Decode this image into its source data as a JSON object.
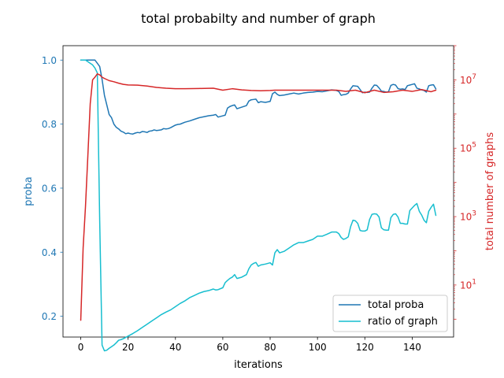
{
  "chart_data": {
    "type": "line",
    "title": "total probabilty and number of graph",
    "xlabel": "iterations",
    "ylabel_left": "proba",
    "ylabel_right": "total number of graphs",
    "xlim": [
      -7.5,
      157.5
    ],
    "ylim_left": [
      0.135,
      1.045
    ],
    "ylim_right": [
      0.3,
      100000000
    ],
    "right_scale": "log",
    "x_ticks": [
      0,
      20,
      40,
      60,
      80,
      100,
      120,
      140
    ],
    "left_ticks": [
      0.2,
      0.4,
      0.6,
      0.8,
      1.0
    ],
    "left_tick_labels": [
      "0.2",
      "0.4",
      "0.6",
      "0.8",
      "1.0"
    ],
    "right_ticks": [
      10,
      1000,
      100000,
      10000000
    ],
    "right_tick_labels": [
      "10",
      "3",
      "10",
      "5",
      "10",
      "7"
    ],
    "right_tick_base": "10",
    "right_tick_exponents": [
      "1",
      "3",
      "5",
      "7"
    ],
    "grid": false,
    "legend_position": "lower-right",
    "colors": {
      "total_proba": "#1f77b4",
      "ratio": "#17becf",
      "total_graphs": "#d62728",
      "left_axis": "#1f77b4",
      "right_axis": "#d62728"
    },
    "series": [
      {
        "name": "total proba",
        "axis": "left",
        "x": [
          0,
          2,
          4,
          6,
          7,
          8,
          9,
          10,
          11,
          12,
          13,
          14,
          15,
          16,
          17,
          18,
          19,
          20,
          21,
          22,
          23,
          24,
          25,
          26,
          27,
          28,
          29,
          30,
          31,
          32,
          33,
          34,
          35,
          36,
          37,
          38,
          39,
          40,
          41,
          42,
          44,
          46,
          48,
          50,
          52,
          54,
          56,
          57,
          58,
          60,
          61,
          62,
          63,
          64,
          65,
          66,
          68,
          70,
          71,
          72,
          73,
          74,
          75,
          76,
          78,
          80,
          81,
          82,
          83,
          84,
          86,
          88,
          90,
          92,
          94,
          96,
          98,
          100,
          102,
          104,
          106,
          108,
          109,
          110,
          111,
          112,
          113,
          114,
          115,
          116,
          117,
          118,
          119,
          120,
          121,
          122,
          123,
          124,
          125,
          126,
          127,
          128,
          129,
          130,
          131,
          132,
          133,
          134,
          135,
          136,
          137,
          138,
          139,
          140,
          141,
          142,
          143,
          144,
          145,
          146,
          147,
          148,
          149,
          150
        ],
        "values": [
          1.0,
          1.0,
          1.0,
          1.0,
          0.99,
          0.98,
          0.94,
          0.89,
          0.86,
          0.83,
          0.82,
          0.8,
          0.79,
          0.785,
          0.778,
          0.775,
          0.77,
          0.772,
          0.77,
          0.769,
          0.772,
          0.774,
          0.773,
          0.777,
          0.776,
          0.774,
          0.778,
          0.779,
          0.782,
          0.78,
          0.781,
          0.782,
          0.786,
          0.785,
          0.786,
          0.789,
          0.793,
          0.797,
          0.799,
          0.8,
          0.806,
          0.81,
          0.815,
          0.82,
          0.823,
          0.826,
          0.828,
          0.83,
          0.822,
          0.826,
          0.828,
          0.85,
          0.855,
          0.858,
          0.86,
          0.848,
          0.853,
          0.858,
          0.872,
          0.876,
          0.877,
          0.878,
          0.867,
          0.87,
          0.868,
          0.871,
          0.895,
          0.9,
          0.893,
          0.889,
          0.891,
          0.894,
          0.897,
          0.894,
          0.897,
          0.899,
          0.9,
          0.902,
          0.901,
          0.904,
          0.907,
          0.905,
          0.902,
          0.89,
          0.892,
          0.893,
          0.897,
          0.91,
          0.92,
          0.919,
          0.918,
          0.908,
          0.898,
          0.9,
          0.899,
          0.9,
          0.912,
          0.922,
          0.921,
          0.913,
          0.903,
          0.902,
          0.9,
          0.901,
          0.921,
          0.924,
          0.922,
          0.911,
          0.909,
          0.91,
          0.908,
          0.92,
          0.922,
          0.924,
          0.926,
          0.912,
          0.91,
          0.907,
          0.905,
          0.9,
          0.92,
          0.922,
          0.923,
          0.91
        ]
      },
      {
        "name": "ratio of graph",
        "axis": "left",
        "x": [
          0,
          2,
          4,
          5,
          6,
          7,
          8,
          9,
          10,
          11,
          12,
          13,
          14,
          15,
          16,
          17,
          18,
          19,
          20,
          22,
          24,
          26,
          28,
          30,
          32,
          34,
          36,
          38,
          40,
          42,
          44,
          46,
          48,
          50,
          52,
          54,
          56,
          57,
          58,
          60,
          61,
          62,
          63,
          64,
          65,
          66,
          68,
          70,
          71,
          72,
          73,
          74,
          75,
          76,
          78,
          80,
          81,
          82,
          83,
          84,
          86,
          88,
          90,
          92,
          94,
          96,
          98,
          100,
          102,
          104,
          106,
          108,
          109,
          110,
          111,
          112,
          113,
          114,
          115,
          116,
          117,
          118,
          119,
          120,
          121,
          122,
          123,
          124,
          125,
          126,
          127,
          128,
          129,
          130,
          131,
          132,
          133,
          134,
          135,
          136,
          137,
          138,
          139,
          140,
          141,
          142,
          143,
          144,
          145,
          146,
          147,
          148,
          149,
          150
        ],
        "values": [
          1.0,
          1.0,
          0.99,
          0.985,
          0.975,
          0.96,
          0.5,
          0.11,
          0.092,
          0.094,
          0.1,
          0.105,
          0.11,
          0.117,
          0.125,
          0.127,
          0.13,
          0.134,
          0.138,
          0.146,
          0.155,
          0.165,
          0.175,
          0.185,
          0.195,
          0.205,
          0.213,
          0.22,
          0.23,
          0.24,
          0.248,
          0.258,
          0.265,
          0.272,
          0.277,
          0.28,
          0.285,
          0.282,
          0.283,
          0.289,
          0.305,
          0.312,
          0.318,
          0.322,
          0.33,
          0.318,
          0.322,
          0.33,
          0.348,
          0.36,
          0.365,
          0.368,
          0.356,
          0.36,
          0.363,
          0.367,
          0.36,
          0.398,
          0.408,
          0.398,
          0.403,
          0.413,
          0.423,
          0.43,
          0.43,
          0.435,
          0.44,
          0.45,
          0.45,
          0.456,
          0.463,
          0.463,
          0.458,
          0.446,
          0.44,
          0.443,
          0.448,
          0.48,
          0.5,
          0.498,
          0.49,
          0.468,
          0.466,
          0.466,
          0.47,
          0.502,
          0.518,
          0.52,
          0.519,
          0.51,
          0.476,
          0.47,
          0.469,
          0.469,
          0.508,
          0.518,
          0.52,
          0.51,
          0.49,
          0.49,
          0.488,
          0.488,
          0.53,
          0.538,
          0.546,
          0.552,
          0.528,
          0.516,
          0.5,
          0.492,
          0.528,
          0.54,
          0.55,
          0.515
        ]
      },
      {
        "name": "total number of graphs",
        "axis": "right",
        "x": [
          0,
          1,
          2,
          3,
          4,
          5,
          6,
          7,
          8,
          9,
          10,
          12,
          14,
          16,
          18,
          20,
          24,
          28,
          32,
          36,
          40,
          44,
          50,
          56,
          60,
          64,
          68,
          72,
          76,
          80,
          82,
          90,
          100,
          108,
          112,
          116,
          120,
          124,
          128,
          132,
          136,
          140,
          144,
          148,
          150
        ],
        "values": [
          0.93,
          120,
          2000,
          60000,
          2000000,
          10000000,
          12000000,
          15000000,
          14000000,
          12000000,
          11000000,
          9500000,
          8800000,
          8000000,
          7400000,
          7100000,
          7000000,
          6600000,
          6000000,
          5700000,
          5500000,
          5500000,
          5600000,
          5700000,
          5000000,
          5500000,
          5100000,
          4900000,
          4800000,
          4900000,
          5000000,
          5000000,
          5000000,
          5000000,
          4600000,
          5000000,
          4200000,
          5000000,
          4300000,
          4500000,
          5000000,
          4600000,
          5200000,
          4500000,
          5000000
        ]
      }
    ]
  }
}
